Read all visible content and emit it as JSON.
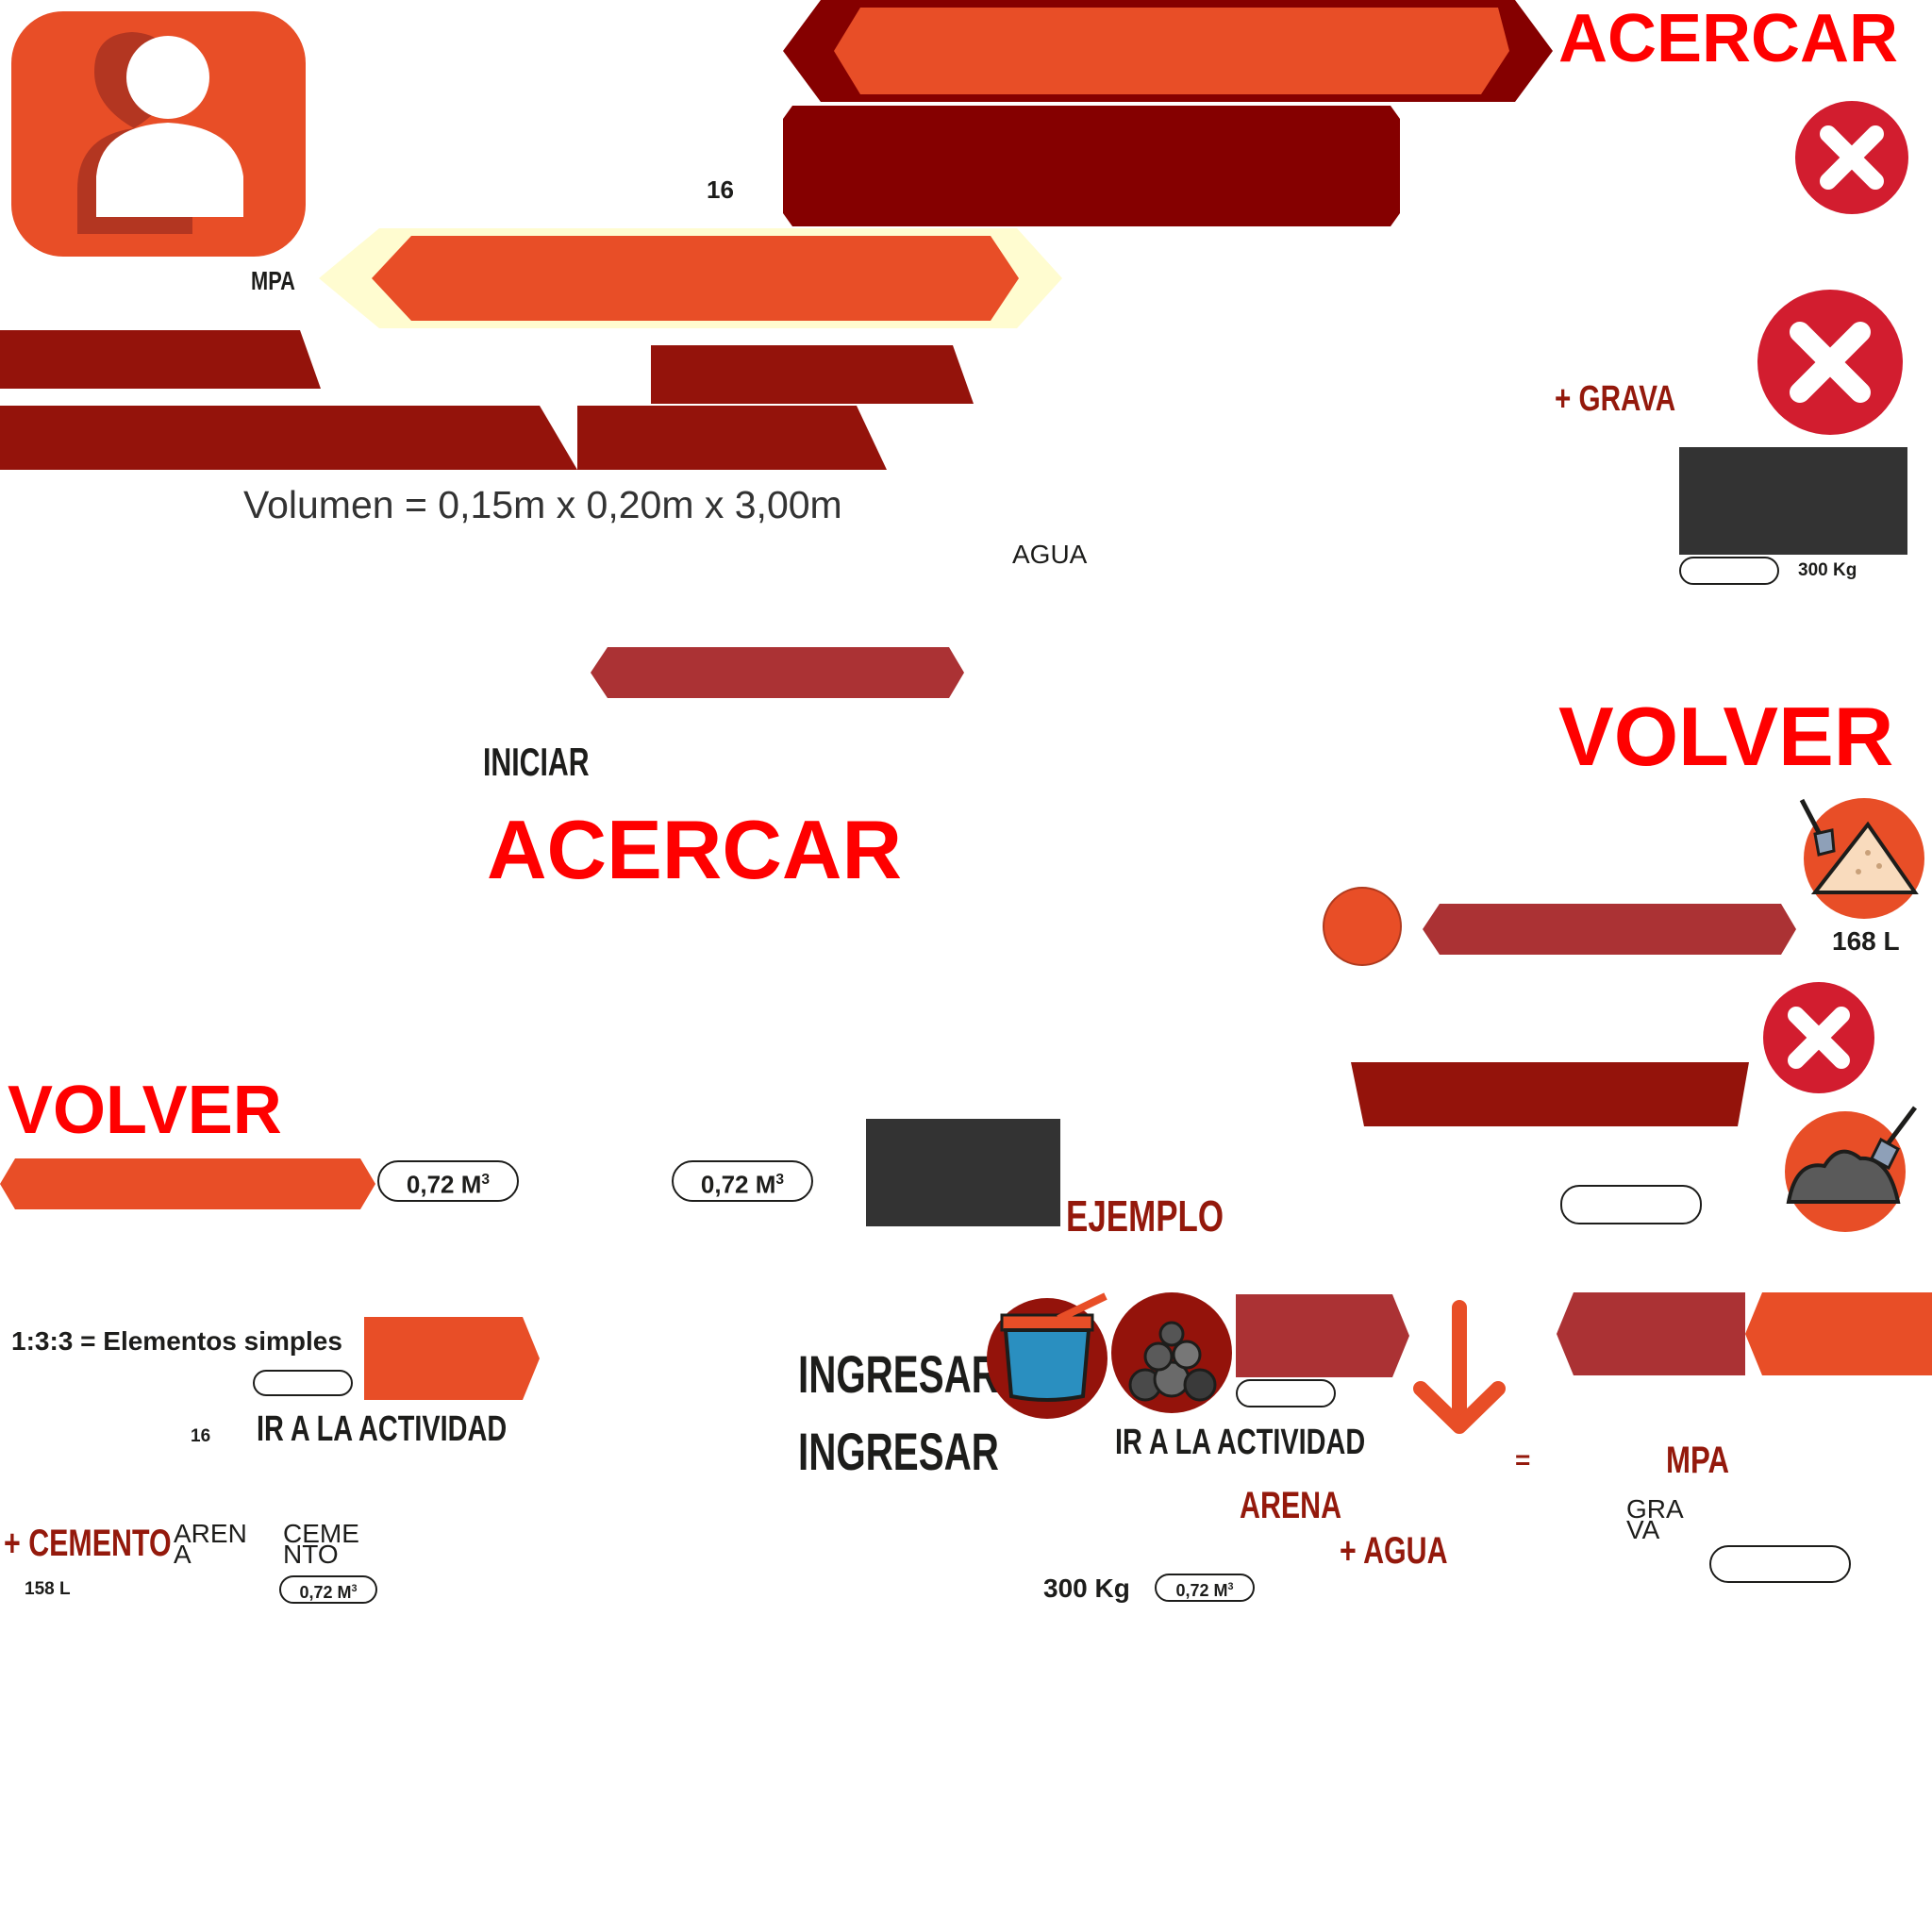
{
  "labels": {
    "acercar": "ACERCAR",
    "volver": "VOLVER",
    "mpa": "MPA",
    "sixteen": "16",
    "grava_plus": "+ GRAVA",
    "kg300": "300 Kg",
    "volumen": "Volumen = 0,15m x 0,20m x 3,00m",
    "agua": "AGUA",
    "iniciar": "INICIAR",
    "l168": "168 L",
    "m3": "0,72 M",
    "m3_sup": "3",
    "ejemplo": "EJEMPLO",
    "elementos": "1:3:3 = Elementos simples",
    "ir_actividad": "IR A LA ACTIVIDAD",
    "ingresar": "INGRESAR",
    "arena": "ARENA",
    "agua_plus": "+ AGUA",
    "equals": "=",
    "grava_split_1": "GRA",
    "grava_split_2": "VA",
    "cemento_plus": "+ CEMENTO",
    "arena_split_1": "AREN",
    "arena_split_2": "A",
    "cemento_split_1": "CEME",
    "cemento_split_2": "NTO",
    "l158": "158 L"
  },
  "icons": {
    "user": "user-icon",
    "close": "close-icon",
    "sand": "sand-pile-icon",
    "gravel": "gravel-pile-icon",
    "water": "water-bucket-icon",
    "stones": "stones-icon",
    "arrow": "arrow-down-icon"
  },
  "colors": {
    "orange": "#e84e27",
    "maroon": "#850000",
    "dark_red": "#94130b",
    "brick": "#ab3234",
    "bright_red": "#ff0000",
    "close_red": "#d21d2f",
    "pale_yellow": "#fffcd0",
    "charcoal": "#333333"
  }
}
